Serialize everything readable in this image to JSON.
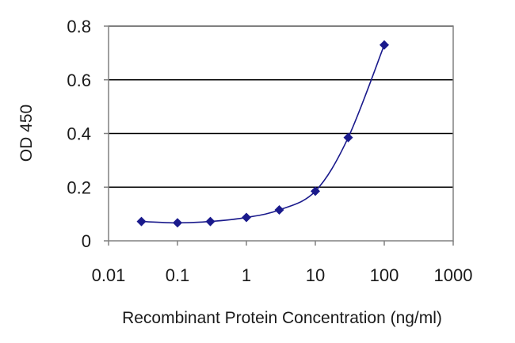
{
  "chart_data": {
    "type": "line",
    "title": "",
    "xlabel": "Recombinant Protein Concentration (ng/ml)",
    "ylabel": "OD 450",
    "xscale": "log",
    "xlim": [
      0.01,
      1000
    ],
    "ylim": [
      0,
      0.8
    ],
    "xticks": [
      0.01,
      0.1,
      1,
      10,
      100,
      1000
    ],
    "xtick_labels": [
      "0.01",
      "0.1",
      "1",
      "10",
      "100",
      "1000"
    ],
    "yticks": [
      0,
      0.2,
      0.4,
      0.6,
      0.8
    ],
    "ytick_labels": [
      "0",
      "0.2",
      "0.4",
      "0.6",
      "0.8"
    ],
    "grid": "horizontal",
    "legend": "none",
    "series": [
      {
        "x": [
          0.03,
          0.1,
          0.3,
          1,
          3,
          10,
          30,
          100
        ],
        "y": [
          0.072,
          0.067,
          0.072,
          0.087,
          0.115,
          0.185,
          0.385,
          0.73
        ]
      }
    ],
    "colors": {
      "line": "#1a1a8c",
      "marker": "#1a1a8c",
      "grid": "#000000",
      "axis": "#808080"
    }
  }
}
